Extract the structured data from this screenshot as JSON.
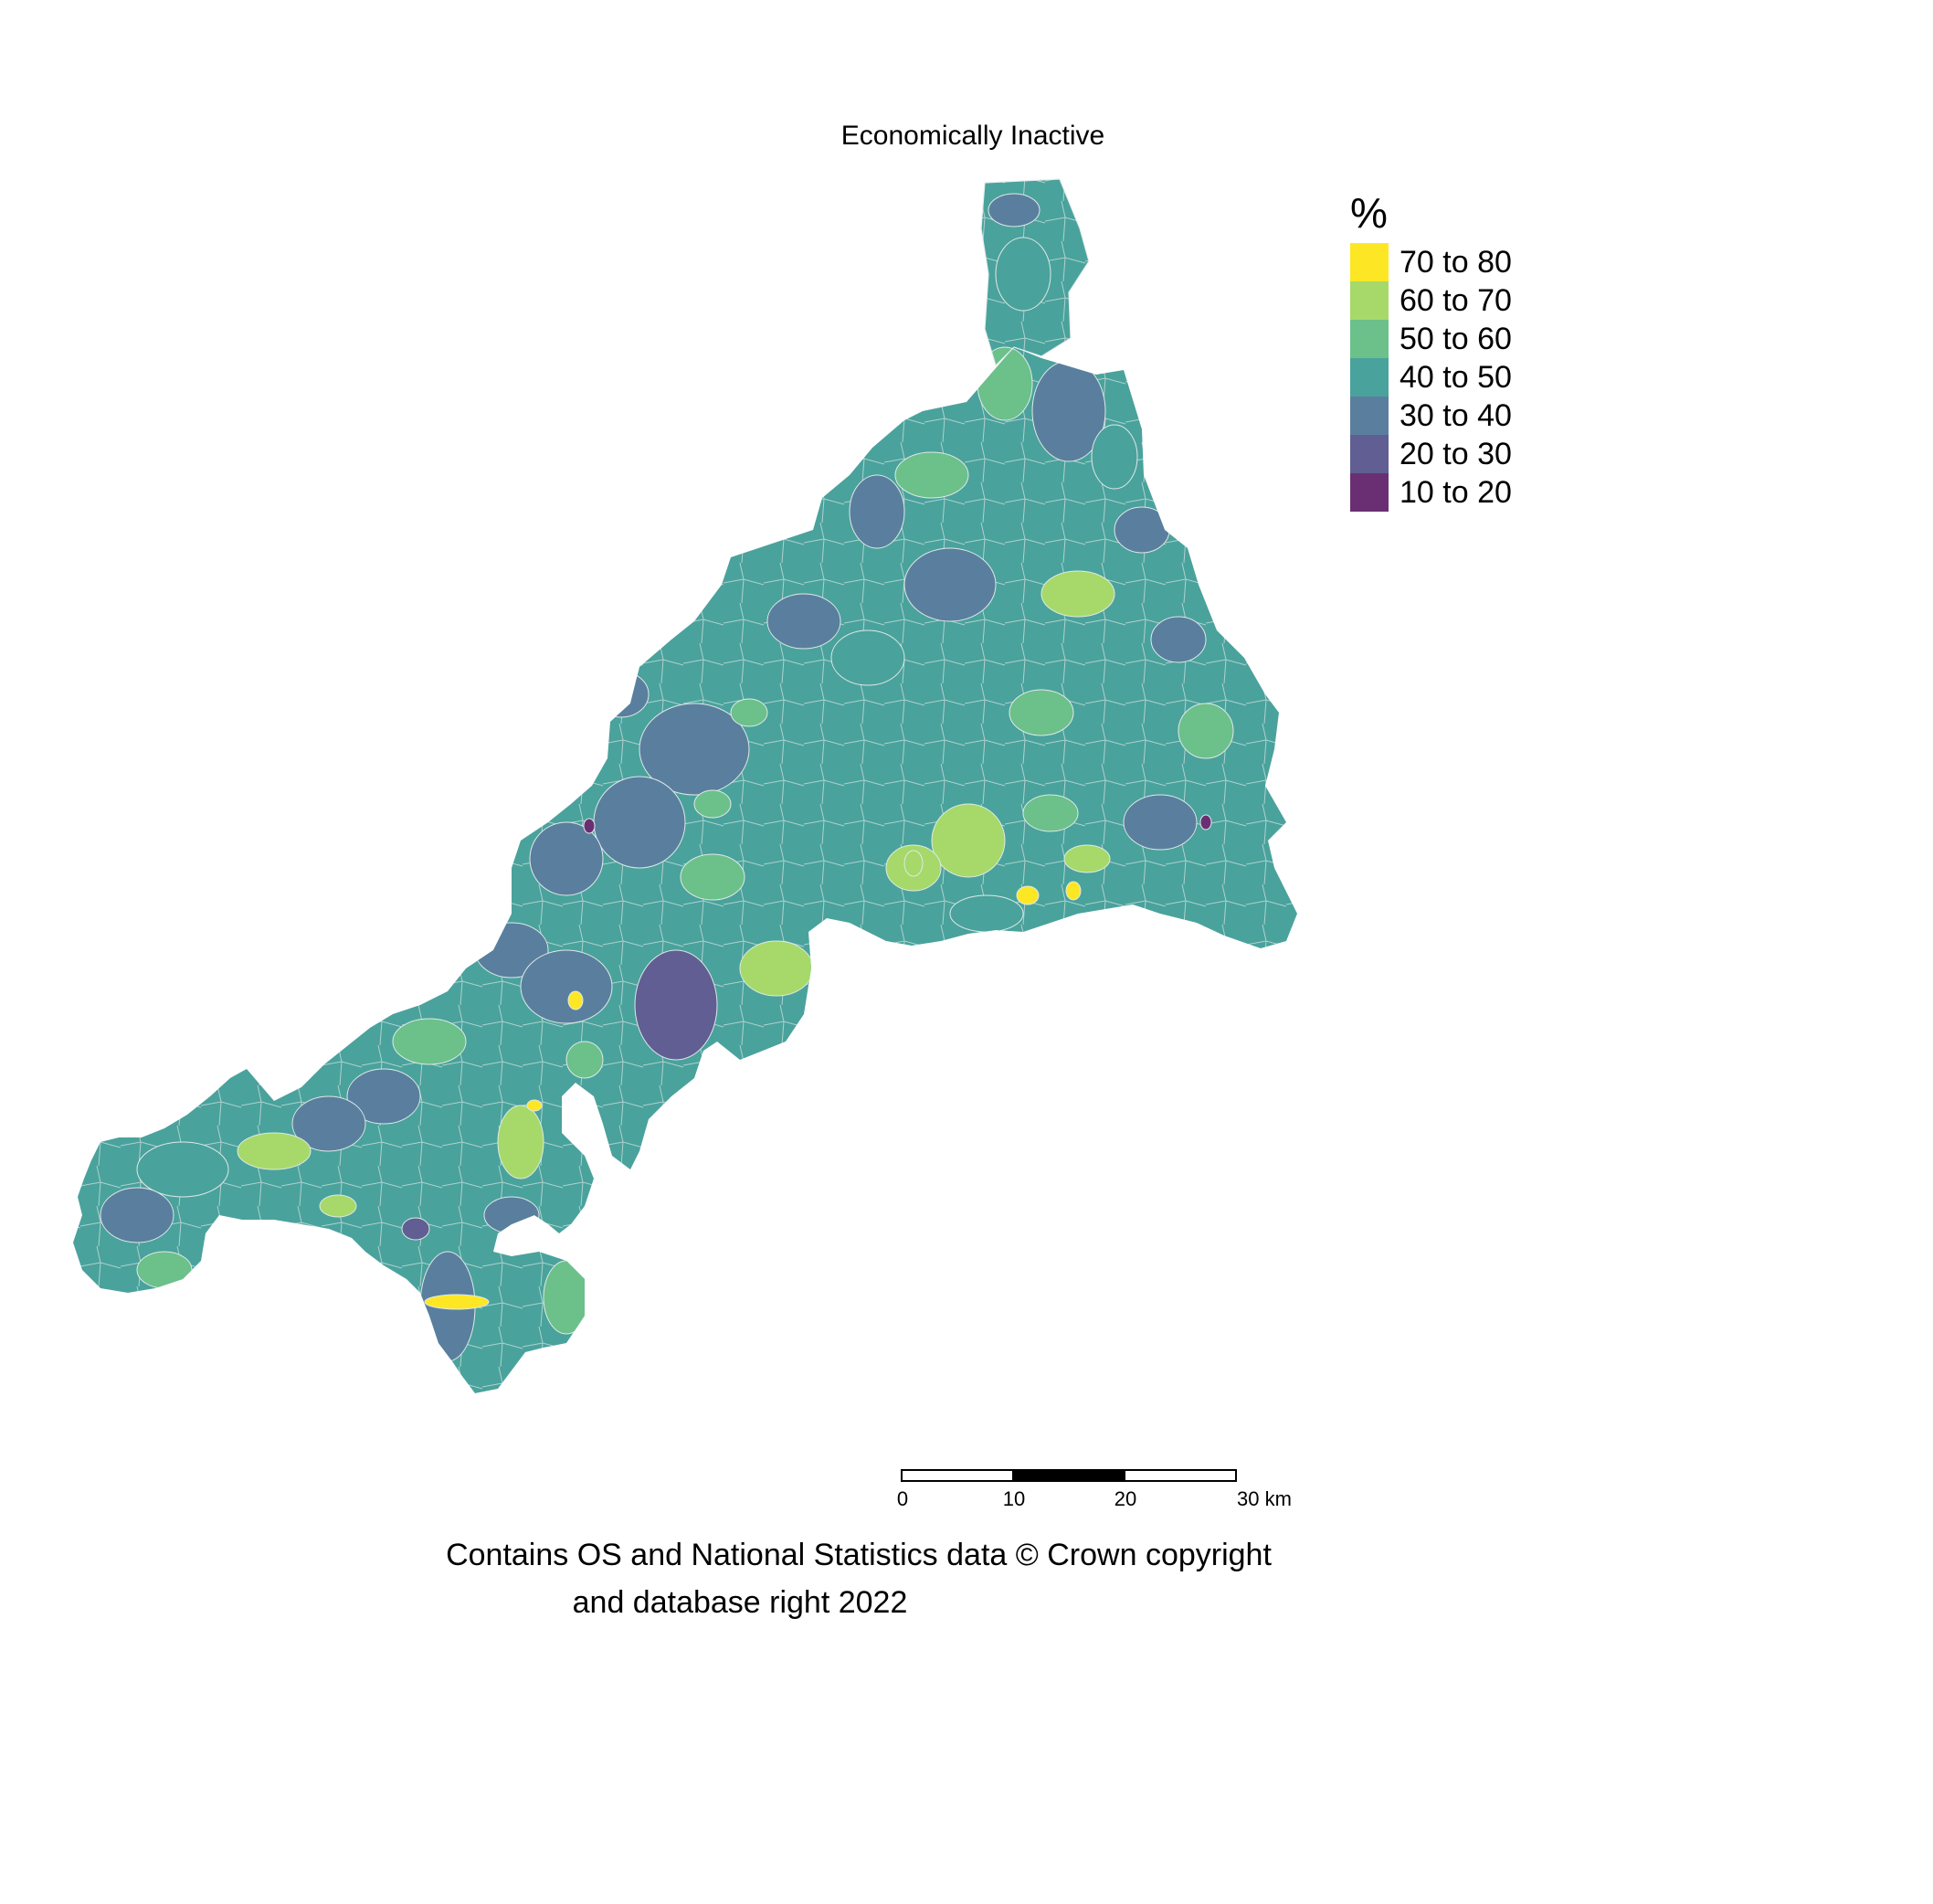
{
  "map": {
    "title": "Economically Inactive",
    "legend": {
      "title": "%",
      "items": [
        {
          "label": "70 to 80",
          "color": "#fde725"
        },
        {
          "label": "60 to 70",
          "color": "#a6d96a"
        },
        {
          "label": "50 to 60",
          "color": "#6cc08a"
        },
        {
          "label": "40 to 50",
          "color": "#4aa29c"
        },
        {
          "label": "30 to 40",
          "color": "#5a7f9e"
        },
        {
          "label": "20 to 30",
          "color": "#605e92"
        },
        {
          "label": "10 to 20",
          "color": "#6a2f73"
        }
      ]
    },
    "scale_bar": {
      "ticks": [
        "0",
        "10",
        "20",
        "30 km"
      ]
    },
    "credit": {
      "line1": "Contains OS and National Statistics data © Crown copyright",
      "line2": "and database right 2022"
    }
  }
}
